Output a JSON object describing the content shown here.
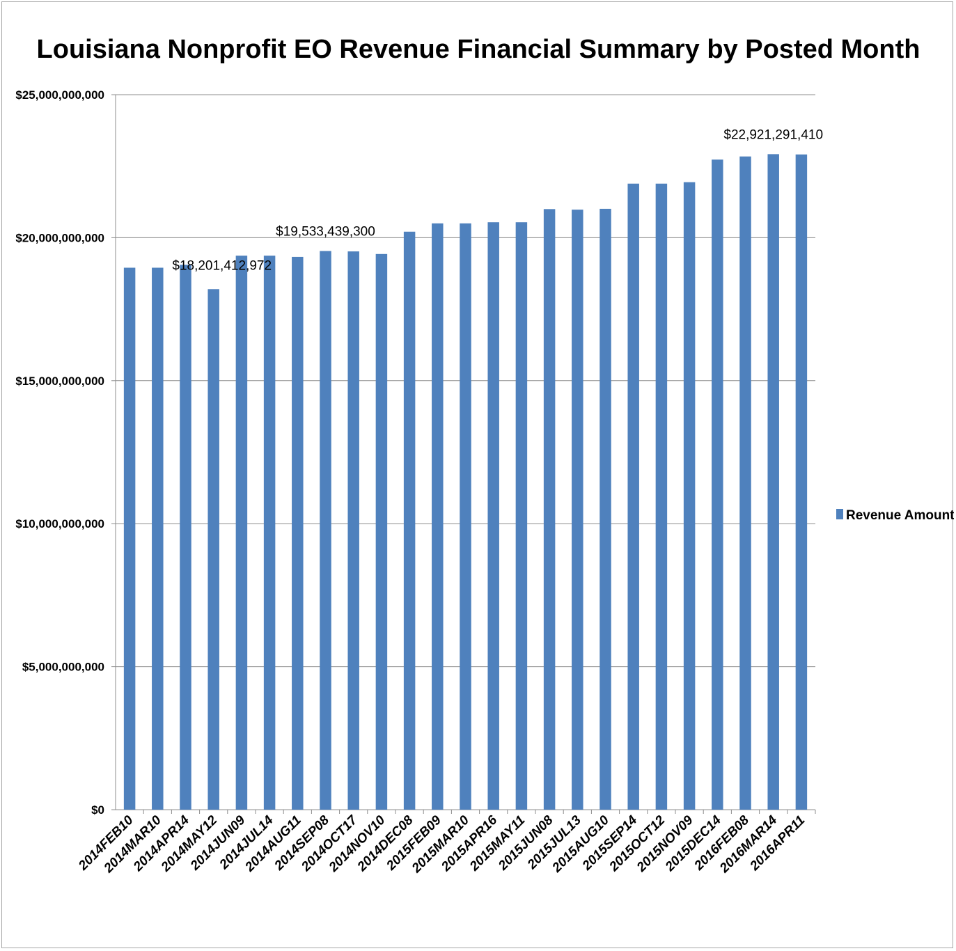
{
  "chart_data": {
    "type": "bar",
    "title": "Louisiana Nonprofit EO Revenue Financial Summary by Posted Month",
    "xlabel": "",
    "ylabel": "",
    "ylim": [
      0,
      25000000000
    ],
    "yticks": [
      0,
      5000000000,
      10000000000,
      15000000000,
      20000000000,
      25000000000
    ],
    "ytick_labels": [
      "$0",
      "$5,000,000,000",
      "$10,000,000,000",
      "$15,000,000,000",
      "$20,000,000,000",
      "$25,000,000,000"
    ],
    "grid": true,
    "legend_position": "right",
    "categories": [
      "2014FEB10",
      "2014MAR10",
      "2014APR14",
      "2014MAY12",
      "2014JUN09",
      "2014JUL14",
      "2014AUG11",
      "2014SEP08",
      "2014OCT17",
      "2014NOV10",
      "2014DEC08",
      "2015FEB09",
      "2015MAR10",
      "2015APR16",
      "2015MAY11",
      "2015JUN08",
      "2015JUL13",
      "2015AUG10",
      "2015SEP14",
      "2015OCT12",
      "2015NOV09",
      "2015DEC14",
      "2016FEB08",
      "2016MAR14",
      "2016APR11"
    ],
    "series": [
      {
        "name": "Revenue Amount",
        "color": "#4f81bd",
        "values": [
          18950000000,
          18950000000,
          19050000000,
          18201412972,
          19370000000,
          19370000000,
          19330000000,
          19533439300,
          19520000000,
          19430000000,
          20210000000,
          20500000000,
          20500000000,
          20540000000,
          20540000000,
          21000000000,
          20980000000,
          21010000000,
          21890000000,
          21890000000,
          21940000000,
          22730000000,
          22840000000,
          22921291410,
          22910000000
        ]
      }
    ],
    "data_labels": [
      {
        "index": 3,
        "text": "$18,201,412,972"
      },
      {
        "index": 7,
        "text": "$19,533,439,300"
      },
      {
        "index": 23,
        "text": "$22,921,291,410"
      }
    ]
  }
}
